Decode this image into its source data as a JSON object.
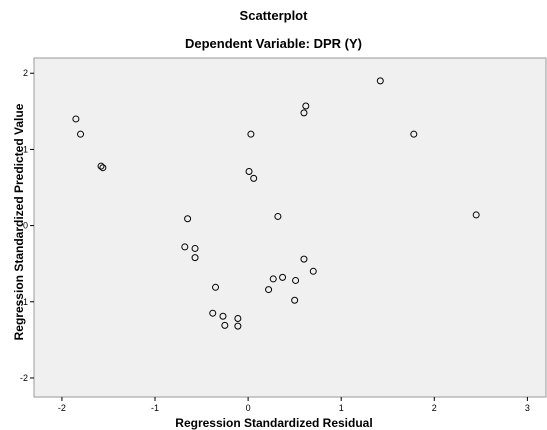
{
  "chart_data": {
    "type": "scatter",
    "title": "Scatterplot",
    "subtitle": "Dependent Variable: DPR (Y)",
    "xlabel": "Regression Standardized Residual",
    "ylabel": "Regression Standardized Predicted Value",
    "xlim": [
      -2.3,
      3.2
    ],
    "ylim": [
      -2.25,
      2.2
    ],
    "xticks": [
      -2,
      -1,
      0,
      1,
      2,
      3
    ],
    "yticks": [
      -2,
      -1,
      0,
      1,
      2
    ],
    "grid": false,
    "plot_background": "#f0f0f0",
    "marker_color": "#000000",
    "points": [
      {
        "x": -1.85,
        "y": 1.4
      },
      {
        "x": -1.8,
        "y": 1.2
      },
      {
        "x": -1.58,
        "y": 0.78
      },
      {
        "x": -1.56,
        "y": 0.76
      },
      {
        "x": -0.65,
        "y": 0.09
      },
      {
        "x": -0.68,
        "y": -0.28
      },
      {
        "x": -0.57,
        "y": -0.3
      },
      {
        "x": -0.57,
        "y": -0.42
      },
      {
        "x": -0.35,
        "y": -0.81
      },
      {
        "x": -0.38,
        "y": -1.15
      },
      {
        "x": -0.27,
        "y": -1.19
      },
      {
        "x": -0.25,
        "y": -1.31
      },
      {
        "x": -0.11,
        "y": -1.22
      },
      {
        "x": -0.11,
        "y": -1.32
      },
      {
        "x": 0.03,
        "y": 1.2
      },
      {
        "x": 0.01,
        "y": 0.71
      },
      {
        "x": 0.06,
        "y": 0.62
      },
      {
        "x": 0.32,
        "y": 0.12
      },
      {
        "x": 0.27,
        "y": -0.7
      },
      {
        "x": 0.37,
        "y": -0.68
      },
      {
        "x": 0.22,
        "y": -0.84
      },
      {
        "x": 0.51,
        "y": -0.72
      },
      {
        "x": 0.5,
        "y": -0.98
      },
      {
        "x": 0.6,
        "y": -0.44
      },
      {
        "x": 0.7,
        "y": -0.6
      },
      {
        "x": 0.6,
        "y": 1.48
      },
      {
        "x": 0.62,
        "y": 1.57
      },
      {
        "x": 1.42,
        "y": 1.9
      },
      {
        "x": 1.78,
        "y": 1.2
      },
      {
        "x": 2.45,
        "y": 0.14
      }
    ]
  }
}
